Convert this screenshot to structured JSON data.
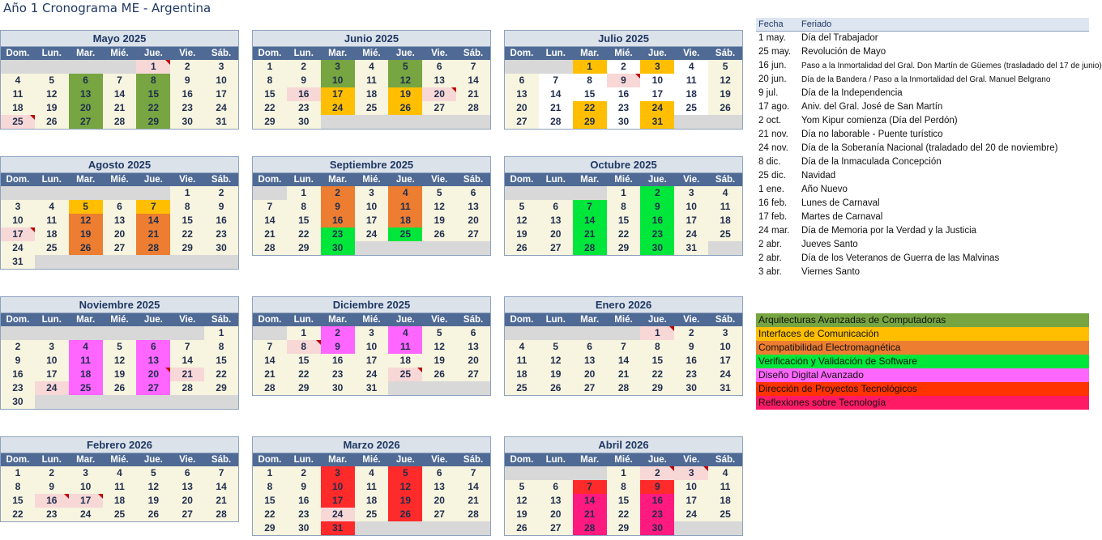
{
  "title": "Año 1 Cronograma ME - Argentina",
  "day_headers": [
    "Dom.",
    "Lun.",
    "Mar.",
    "Mié.",
    "Jue.",
    "Vie.",
    "Sáb."
  ],
  "months": [
    {
      "name": "Mayo 2025",
      "start": 4,
      "days": 31,
      "colors": {
        "6": "a",
        "8": "a",
        "13": "a",
        "15": "a",
        "20": "a",
        "22": "a",
        "27": "a",
        "29": "a"
      },
      "holidays": [
        1,
        25
      ],
      "notes": [
        1,
        25
      ],
      "white_weekends": false
    },
    {
      "name": "Junio 2025",
      "start": 0,
      "days": 30,
      "colors": {
        "3": "a",
        "5": "a",
        "10": "a",
        "12": "a",
        "17": "b",
        "19": "b",
        "24": "b",
        "26": "b"
      },
      "holidays": [
        16,
        20
      ],
      "notes": [
        20
      ],
      "white_weekends": false
    },
    {
      "name": "Julio 2025",
      "start": 2,
      "days": 31,
      "colors": {
        "1": "b",
        "3": "b",
        "22": "b",
        "24": "b",
        "29": "b",
        "31": "b"
      },
      "holidays": [
        9
      ],
      "notes": [
        9
      ],
      "white_weekends": true
    },
    {
      "name": "Agosto 2025",
      "start": 5,
      "days": 31,
      "colors": {
        "5": "b",
        "7": "b",
        "12": "c",
        "14": "c",
        "19": "c",
        "21": "c",
        "26": "c",
        "28": "c"
      },
      "holidays": [
        17
      ],
      "notes": [
        17
      ],
      "white_weekends": false
    },
    {
      "name": "Septiembre 2025",
      "start": 1,
      "days": 30,
      "colors": {
        "2": "c",
        "4": "c",
        "9": "c",
        "11": "c",
        "16": "c",
        "18": "c",
        "23": "d",
        "25": "d",
        "30": "d"
      },
      "holidays": [],
      "notes": [],
      "white_weekends": false
    },
    {
      "name": "Octubre 2025",
      "start": 3,
      "days": 31,
      "colors": {
        "2": "d",
        "7": "d",
        "9": "d",
        "14": "d",
        "16": "d",
        "21": "d",
        "23": "d",
        "28": "d",
        "30": "d"
      },
      "holidays": [],
      "notes": [],
      "white_weekends": false
    },
    {
      "name": "Noviembre 2025",
      "start": 6,
      "days": 30,
      "colors": {
        "4": "f",
        "6": "f",
        "11": "f",
        "13": "f",
        "18": "f",
        "20": "f",
        "25": "f",
        "27": "f"
      },
      "holidays": [
        21,
        24
      ],
      "notes": [
        20
      ],
      "white_weekends": false
    },
    {
      "name": "Diciembre 2025",
      "start": 1,
      "days": 31,
      "colors": {
        "2": "f",
        "4": "f",
        "9": "f",
        "11": "f"
      },
      "holidays": [
        8,
        25
      ],
      "notes": [
        8,
        25
      ],
      "white_weekends": false
    },
    {
      "name": "Enero 2026",
      "start": 4,
      "days": 31,
      "colors": {},
      "holidays": [
        1
      ],
      "notes": [
        1
      ],
      "white_weekends": false
    },
    {
      "name": "Febrero 2026",
      "start": 0,
      "days": 28,
      "colors": {},
      "holidays": [
        16,
        17
      ],
      "notes": [
        16,
        17
      ],
      "white_weekends": false
    },
    {
      "name": "Marzo 2026",
      "start": 0,
      "days": 31,
      "colors": {
        "3": "g",
        "5": "g",
        "10": "g",
        "12": "g",
        "17": "g",
        "19": "g",
        "24": "h",
        "26": "g",
        "31": "g"
      },
      "holidays": [
        24
      ],
      "notes": [],
      "white_weekends": false
    },
    {
      "name": "Abril 2026",
      "start": 3,
      "days": 30,
      "colors": {
        "2": "h",
        "3": "h",
        "7": "g",
        "9": "g",
        "14": "k",
        "16": "k",
        "21": "k",
        "23": "k",
        "28": "k",
        "30": "k"
      },
      "holidays": [],
      "notes": [
        2,
        3
      ],
      "white_weekends": false
    }
  ],
  "holidays_table": {
    "header_fecha": "Fecha",
    "header_feriado": "Feriado",
    "rows": [
      {
        "fecha": "1 may.",
        "feriado": "Día del Trabajador"
      },
      {
        "fecha": "25 may.",
        "feriado": "Revolución de Mayo"
      },
      {
        "fecha": "16 jun.",
        "feriado": "Paso a la Inmortalidad del Gral. Don Martín de Güemes (trasladado del 17 de junio)"
      },
      {
        "fecha": "20 jun.",
        "feriado": "Día de la Bandera / Paso a la Inmortalidad del Gral. Manuel Belgrano"
      },
      {
        "fecha": "9 jul.",
        "feriado": "Día de la Independencia"
      },
      {
        "fecha": "17 ago.",
        "feriado": "Aniv. del Gral. José de San Martín"
      },
      {
        "fecha": "2 oct.",
        "feriado": "Yom Kipur comienza (Día del Perdón)"
      },
      {
        "fecha": "21 nov.",
        "feriado": "Día no laborable - Puente turístico"
      },
      {
        "fecha": "24 nov.",
        "feriado": "Día de la Soberanía Nacional (traladado del 20 de noviembre)"
      },
      {
        "fecha": "8 dic.",
        "feriado": "Día de la Inmaculada Concepción"
      },
      {
        "fecha": "25 dic.",
        "feriado": "Navidad"
      },
      {
        "fecha": "1 ene.",
        "feriado": "Año Nuevo"
      },
      {
        "fecha": "16 feb.",
        "feriado": "Lunes de Carnaval"
      },
      {
        "fecha": "17 feb.",
        "feriado": "Martes de Carnaval"
      },
      {
        "fecha": "24 mar.",
        "feriado": "Día de Memoria por la Verdad y la Justicia"
      },
      {
        "fecha": "2 abr.",
        "feriado": "Jueves Santo"
      },
      {
        "fecha": "2 abr.",
        "feriado": "Día de los Veteranos de Guerra de las Malvinas"
      },
      {
        "fecha": "3 abr.",
        "feriado": "Viernes Santo"
      }
    ]
  },
  "legend": [
    {
      "label": "Arquitecturas Avanzadas de Computadoras",
      "color": "#76a541"
    },
    {
      "label": "Interfaces de Comunicación",
      "color": "#ffbf00"
    },
    {
      "label": "Compatibilidad Electromagnética",
      "color": "#ed7d31"
    },
    {
      "label": "Verificación y Validación de Software",
      "color": "#00e63b"
    },
    {
      "label": "Diseño Digital Avanzado",
      "color": "#ff66ff"
    },
    {
      "label": "Dirección de Proyectos Tecnológicos",
      "color": "#ff3300"
    },
    {
      "label": "Reflexiones sobre Tecnología",
      "color": "#ff1a66"
    }
  ]
}
